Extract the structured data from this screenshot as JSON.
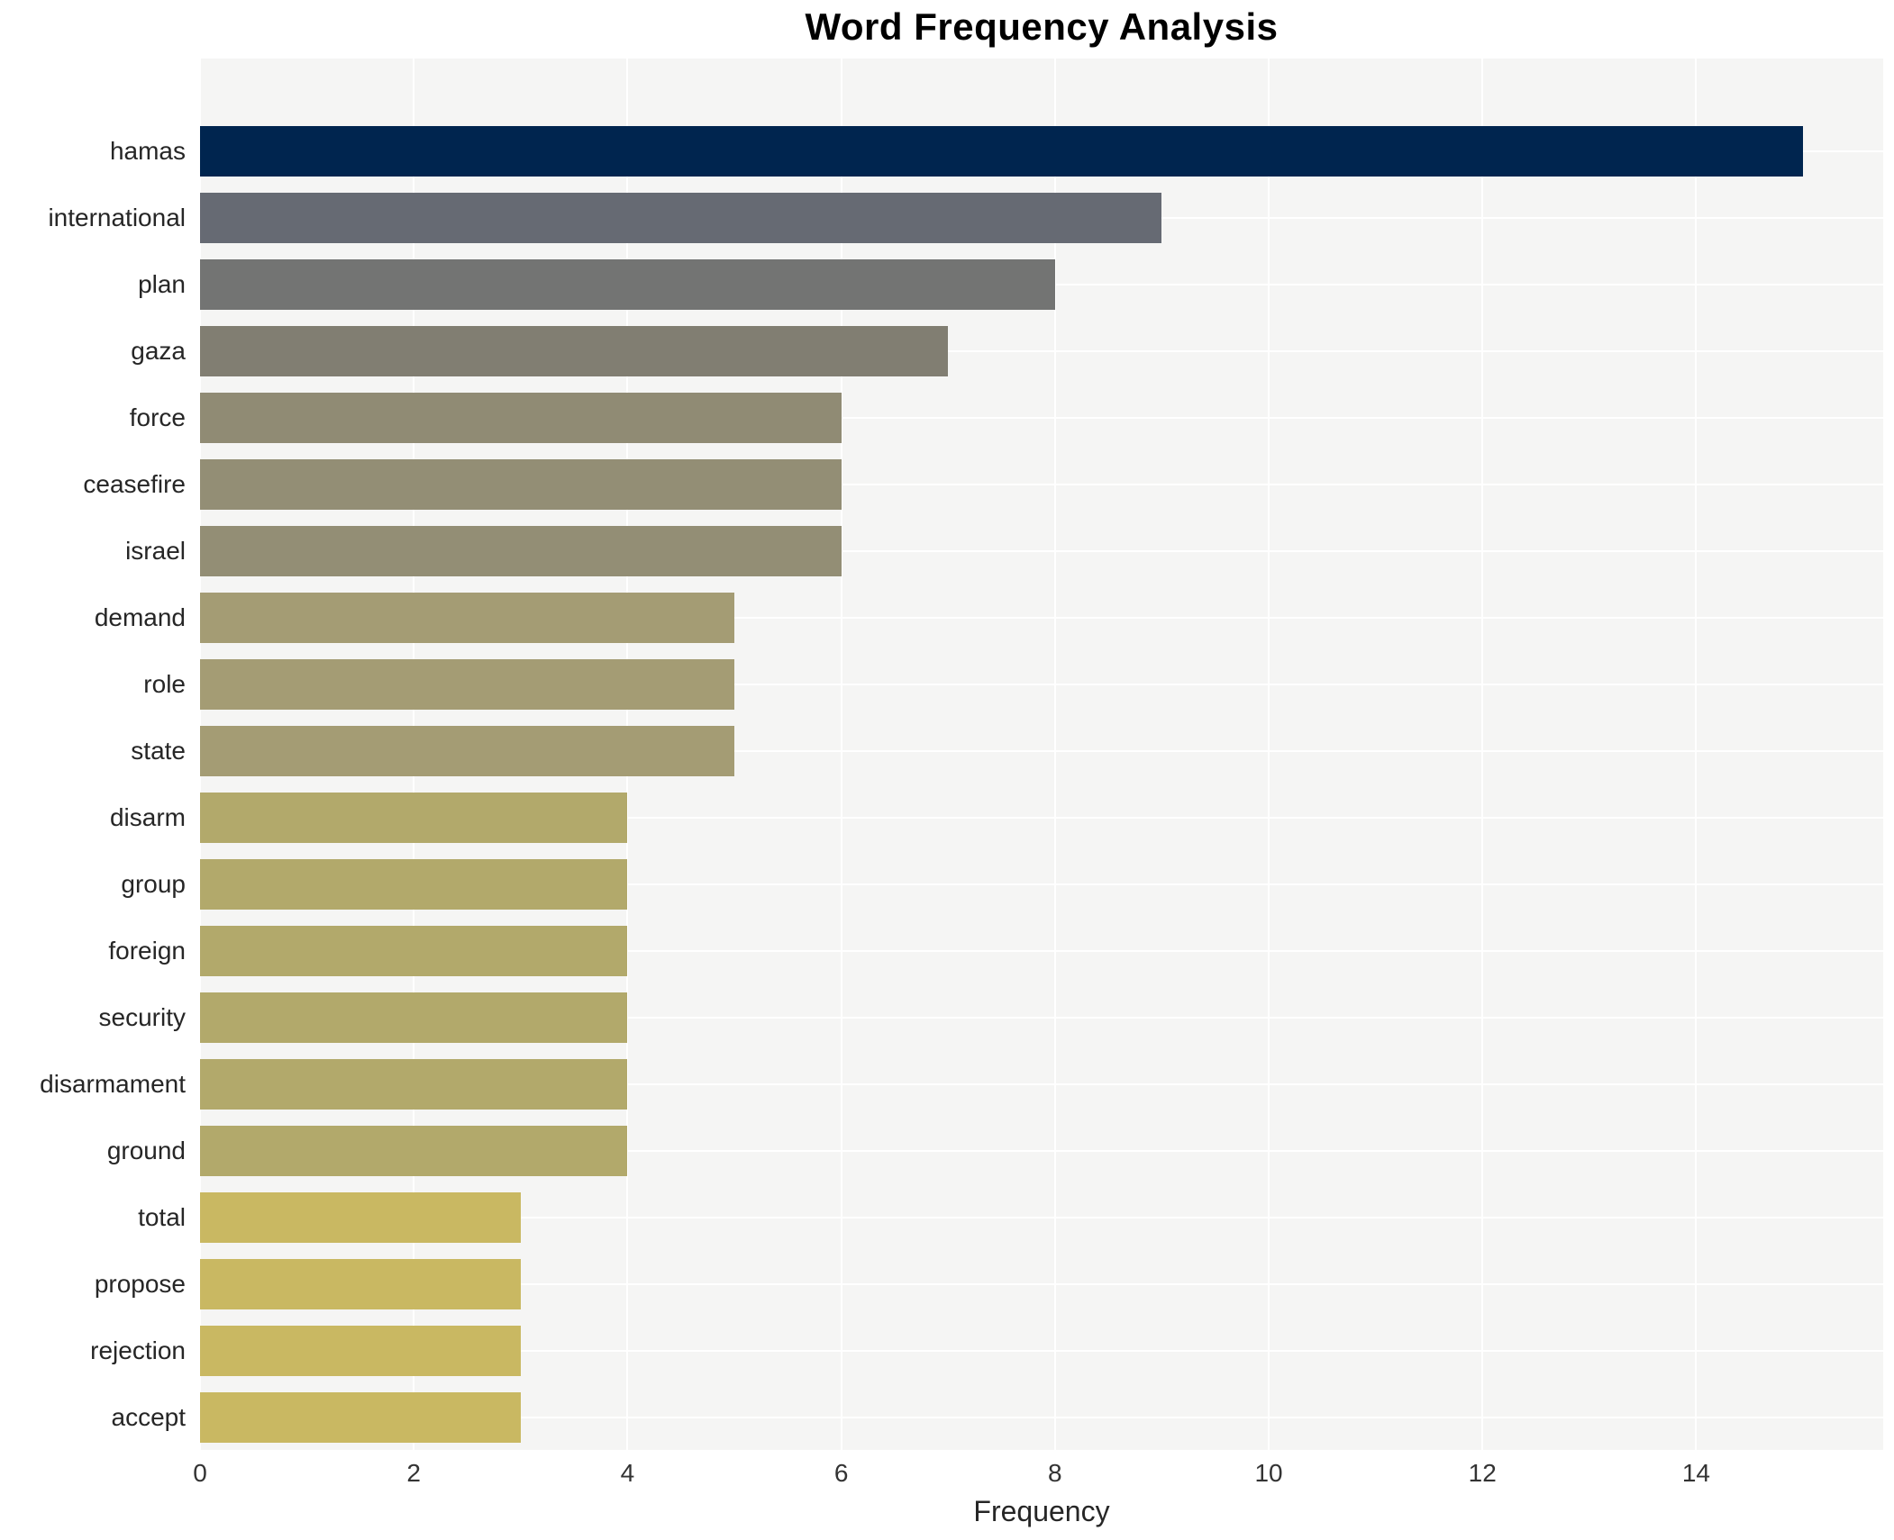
{
  "title": "Word Frequency Analysis",
  "chart_data": {
    "type": "bar",
    "orientation": "horizontal",
    "title": "Word Frequency Analysis",
    "xlabel": "Frequency",
    "ylabel": "",
    "categories": [
      "hamas",
      "international",
      "plan",
      "gaza",
      "force",
      "ceasefire",
      "israel",
      "demand",
      "role",
      "state",
      "disarm",
      "group",
      "foreign",
      "security",
      "disarmament",
      "ground",
      "total",
      "propose",
      "rejection",
      "accept"
    ],
    "values": [
      15,
      9,
      8,
      7,
      6,
      6,
      6,
      5,
      5,
      5,
      4,
      4,
      4,
      4,
      4,
      4,
      3,
      3,
      3,
      3
    ],
    "bar_colors": [
      "#00254f",
      "#666a73",
      "#737473",
      "#817e72",
      "#908b74",
      "#938e75",
      "#938e75",
      "#a49c74",
      "#a49c74",
      "#a49c74",
      "#b2a96b",
      "#b2a96b",
      "#b2a96b",
      "#b2a96b",
      "#b2a96b",
      "#b2a96b",
      "#c9b862",
      "#c9b862",
      "#c9b862",
      "#c9b862"
    ],
    "xticks": [
      0,
      2,
      4,
      6,
      8,
      10,
      12,
      14
    ],
    "xlim": [
      0,
      15.75
    ],
    "grid": true,
    "legend": false,
    "plot_bg_color": "#f5f5f4",
    "grid_color": "#ffffff"
  }
}
